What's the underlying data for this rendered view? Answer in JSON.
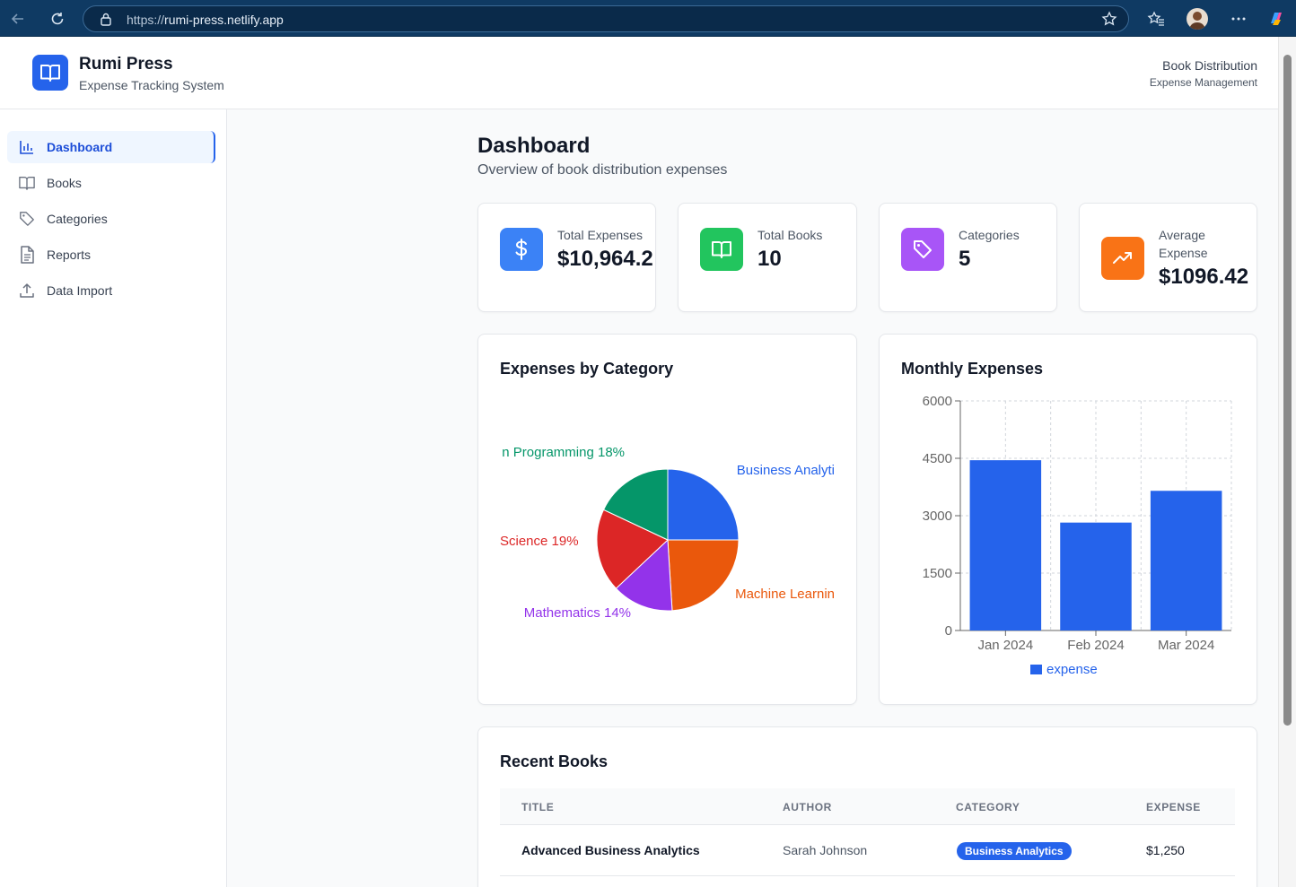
{
  "browser": {
    "url_prefix": "https://",
    "url_host": "rumi-press.netlify.app"
  },
  "header": {
    "title": "Rumi Press",
    "subtitle": "Expense Tracking System",
    "right_title": "Book Distribution",
    "right_subtitle": "Expense Management"
  },
  "sidebar": {
    "items": [
      {
        "label": "Dashboard",
        "icon": "bar-chart-icon",
        "active": true
      },
      {
        "label": "Books",
        "icon": "book-icon",
        "active": false
      },
      {
        "label": "Categories",
        "icon": "tag-icon",
        "active": false
      },
      {
        "label": "Reports",
        "icon": "file-text-icon",
        "active": false
      },
      {
        "label": "Data Import",
        "icon": "upload-icon",
        "active": false
      }
    ]
  },
  "main": {
    "title": "Dashboard",
    "subtitle": "Overview of book distribution expenses"
  },
  "stats": [
    {
      "label": "Total Expenses",
      "value": "$10,964.2",
      "icon": "dollar-icon",
      "color": "#3b82f6"
    },
    {
      "label": "Total Books",
      "value": "10",
      "icon": "book-open-icon",
      "color": "#22c55e"
    },
    {
      "label": "Categories",
      "value": "5",
      "icon": "tag-icon",
      "color": "#a855f7"
    },
    {
      "label": "Average Expense",
      "label_line1": "Average",
      "label_line2": "Expense",
      "value": "$1096.42",
      "icon": "trending-up-icon",
      "color": "#f97316"
    }
  ],
  "pie_card": {
    "title": "Expenses by Category"
  },
  "bar_card": {
    "title": "Monthly Expenses"
  },
  "chart_data": [
    {
      "type": "pie",
      "title": "Expenses by Category",
      "slices": [
        {
          "label": "Business Analyti",
          "value": 25,
          "color": "#2563eb"
        },
        {
          "label": "Machine Learnin",
          "value": 24,
          "color": "#ea580c"
        },
        {
          "label": "Mathematics 14%",
          "value": 14,
          "color": "#9333ea"
        },
        {
          "label": "Science 19%",
          "value": 19,
          "color": "#dc2626"
        },
        {
          "label": "n Programming 18%",
          "value": 18,
          "color": "#059669"
        }
      ]
    },
    {
      "type": "bar",
      "title": "Monthly Expenses",
      "categories": [
        "Jan 2024",
        "Feb 2024",
        "Mar 2024"
      ],
      "series": [
        {
          "name": "expense",
          "values": [
            4450,
            2820,
            3650
          ],
          "color": "#2563eb"
        }
      ],
      "ylim": [
        0,
        6000
      ],
      "yticks": [
        "0",
        "1500",
        "3000",
        "4500",
        "6000"
      ],
      "grid": true,
      "legend": "bottom"
    }
  ],
  "recent_books": {
    "title": "Recent Books",
    "columns": [
      "TITLE",
      "AUTHOR",
      "CATEGORY",
      "EXPENSE"
    ],
    "rows": [
      {
        "title": "Advanced Business Analytics",
        "author": "Sarah Johnson",
        "category": "Business Analytics",
        "expense": "$1,250"
      }
    ]
  }
}
